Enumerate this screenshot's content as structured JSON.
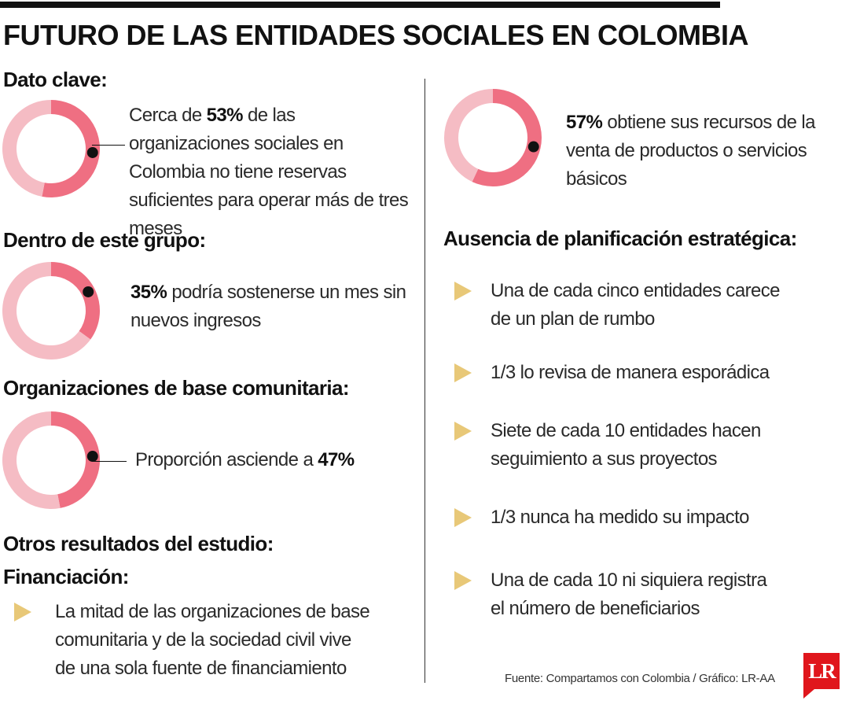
{
  "title": "FUTURO DE LAS ENTIDADES SOCIALES EN COLOMBIA",
  "colors": {
    "donut_highlight": "#ef6f82",
    "donut_base": "#f5bcc4",
    "bullet": "#e8c878",
    "logo_red": "#e0161c"
  },
  "chart_data": [
    {
      "type": "pie",
      "style": "donut",
      "section": "Dato clave:",
      "values": [
        53,
        47
      ],
      "highlight_index": 0,
      "text": {
        "bold": "53%",
        "before": "Cerca de ",
        "after": " de las organizaciones sociales en Colombia no tiene reservas suficientes para operar más de tres meses"
      }
    },
    {
      "type": "pie",
      "style": "donut",
      "section": "Dentro de este grupo:",
      "values": [
        35,
        65
      ],
      "highlight_index": 0,
      "text": {
        "bold": "35%",
        "before": "",
        "after": " podría sostenerse un mes sin nuevos ingresos"
      }
    },
    {
      "type": "pie",
      "style": "donut",
      "section": "Organizaciones de base comunitaria:",
      "values": [
        47,
        53
      ],
      "highlight_index": 0,
      "text": {
        "bold": "47%",
        "before": "Proporción asciende a ",
        "after": ""
      }
    },
    {
      "type": "pie",
      "style": "donut",
      "section": "",
      "values": [
        57,
        43
      ],
      "highlight_index": 0,
      "text": {
        "bold": "57%",
        "before": "",
        "after": " obtiene sus recursos de la venta de productos o servicios básicos"
      }
    }
  ],
  "otros": {
    "heading": "Otros resultados del estudio:"
  },
  "financiacion": {
    "heading": "Financiación:",
    "items": [
      "La mitad de las organizaciones de base comunitaria y de la sociedad civil vive de una sola fuente de financiamiento"
    ]
  },
  "planificacion": {
    "heading": "Ausencia de planificación estratégica:",
    "items": [
      "Una de cada cinco entidades carece de un plan de rumbo",
      "1/3 lo revisa de manera esporádica",
      "Siete de cada 10 entidades hacen seguimiento a sus proyectos",
      "1/3 nunca ha medido su impacto",
      "Una de cada 10 ni siquiera registra el número de beneficiarios"
    ]
  },
  "source": "Fuente: Compartamos con Colombia / Gráfico: LR-AA",
  "logo": {
    "text": "LR"
  }
}
